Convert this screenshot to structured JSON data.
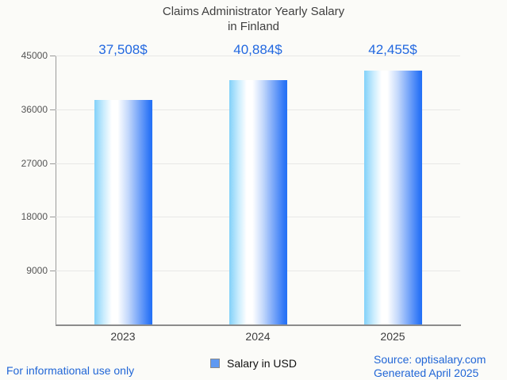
{
  "page": {
    "disclaimer": "For informational use only",
    "source_line1": "Source: optisalary.com",
    "source_line2": "Generated April 2025"
  },
  "chart_data": {
    "type": "bar",
    "title": "Claims Administrator Yearly Salary in Finland",
    "title_lines": [
      "Claims Administrator Yearly Salary",
      "in Finland"
    ],
    "categories": [
      "2023",
      "2024",
      "2025"
    ],
    "values": [
      37508,
      40884,
      42455
    ],
    "value_labels": [
      "37,508$",
      "40,884$",
      "42,455$"
    ],
    "series_name": "Salary in USD",
    "xlabel": "",
    "ylabel": "",
    "ylim": [
      0,
      45000
    ],
    "yticks": [
      9000,
      18000,
      27000,
      36000,
      45000
    ],
    "grid": true,
    "legend_position": "bottom",
    "colors": {
      "bar_gradient_left": "#82d1f9",
      "bar_gradient_mid": "#ffffff",
      "bar_gradient_right": "#2e76f6",
      "value_label_blue": "#2268e0",
      "footer_blue": "#2166d6",
      "legend_swatch_fill": "#5f99f2",
      "title_gray": "#3f3f3f",
      "grid_gray": "#e8e8e6",
      "axis_gray": "#9a9a9a"
    }
  }
}
